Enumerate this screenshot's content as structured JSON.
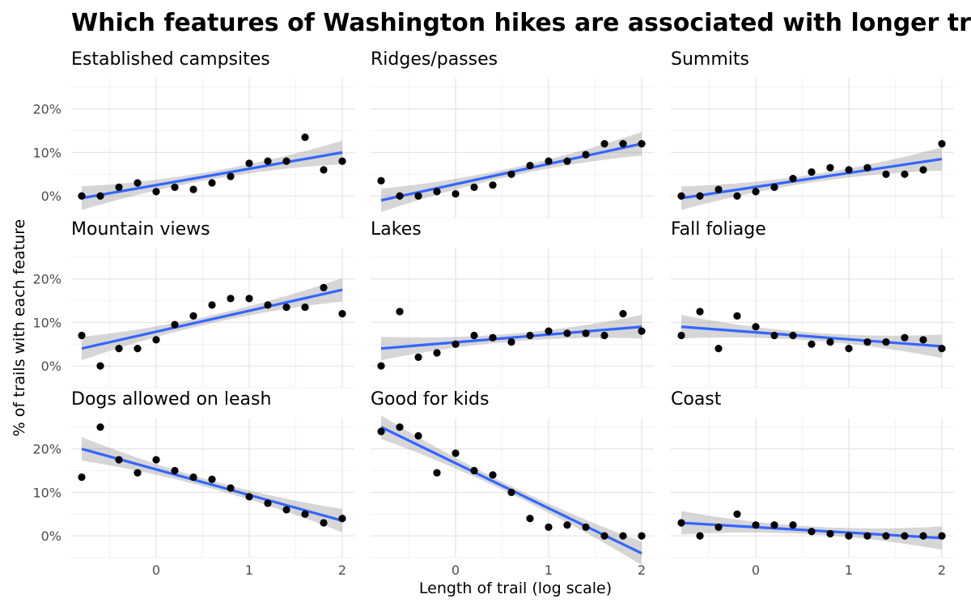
{
  "chart_data": {
    "type": "scatter",
    "title": "Which features of Washington hikes are associated with longer trails?",
    "xlabel": "Length of trail (log scale)",
    "ylabel": "% of trails with each feature",
    "x_ticks": [
      "0",
      "1",
      "2"
    ],
    "x_tick_values": [
      0,
      1,
      2
    ],
    "y_ticks": [
      "0%",
      "10%",
      "20%"
    ],
    "y_tick_values": [
      0,
      10,
      20
    ],
    "xlim": [
      -0.8,
      2
    ],
    "ylim": [
      -5,
      27
    ],
    "grid": true,
    "trend": "linear fit with confidence band",
    "colors": {
      "points": "#000000",
      "fit_line": "#3366ff",
      "band": "#999999"
    },
    "x": [
      -0.8,
      -0.6,
      -0.4,
      -0.2,
      0,
      0.2,
      0.4,
      0.6,
      0.8,
      1.0,
      1.2,
      1.4,
      1.6,
      1.8,
      2.0
    ],
    "panels": [
      {
        "name": "Established campsites",
        "values": [
          0,
          0,
          2,
          3,
          1,
          2,
          1.5,
          3,
          4.5,
          7.5,
          8,
          8,
          13.5,
          6,
          8
        ],
        "fit": [
          -0.5,
          10
        ]
      },
      {
        "name": "Ridges/passes",
        "values": [
          3.5,
          0,
          0,
          1,
          0.5,
          2,
          2.5,
          5,
          7,
          8,
          8,
          9.5,
          12,
          12,
          12
        ],
        "fit": [
          -1,
          12
        ]
      },
      {
        "name": "Summits",
        "values": [
          0,
          0,
          1.5,
          0,
          1,
          2,
          4,
          5.5,
          6.5,
          6,
          6.5,
          5,
          5,
          6,
          12
        ],
        "fit": [
          -0.5,
          8.5
        ]
      },
      {
        "name": "Mountain views",
        "values": [
          7,
          0,
          4,
          4,
          6,
          9.5,
          11.5,
          14,
          15.5,
          15.5,
          14,
          13.5,
          13.5,
          18,
          12
        ],
        "fit": [
          4,
          17.5
        ]
      },
      {
        "name": "Lakes",
        "values": [
          0,
          12.5,
          2,
          3,
          5,
          7,
          6.5,
          5.5,
          7,
          8,
          7.5,
          7.5,
          7,
          12,
          8
        ],
        "fit": [
          4,
          9
        ]
      },
      {
        "name": "Fall foliage",
        "values": [
          7,
          12.5,
          4,
          11.5,
          9,
          7,
          7,
          5,
          5.5,
          4,
          5.5,
          5.5,
          6.5,
          6,
          4
        ],
        "fit": [
          9,
          4.5
        ]
      },
      {
        "name": "Dogs allowed on leash",
        "values": [
          13.5,
          25,
          17.5,
          14.5,
          17.5,
          15,
          13.5,
          13,
          11,
          9,
          7.5,
          6,
          5,
          3,
          4
        ],
        "fit": [
          20,
          3.5
        ]
      },
      {
        "name": "Good for kids",
        "values": [
          24,
          25,
          23,
          14.5,
          19,
          15,
          14,
          10,
          4,
          2,
          2.5,
          2,
          0,
          0,
          0
        ],
        "fit": [
          25,
          -4
        ]
      },
      {
        "name": "Coast",
        "values": [
          3,
          0,
          2,
          5,
          2.5,
          2.5,
          2.5,
          1,
          0.5,
          0,
          0,
          0,
          0,
          0,
          0
        ],
        "fit": [
          3,
          -0.5
        ]
      }
    ]
  }
}
